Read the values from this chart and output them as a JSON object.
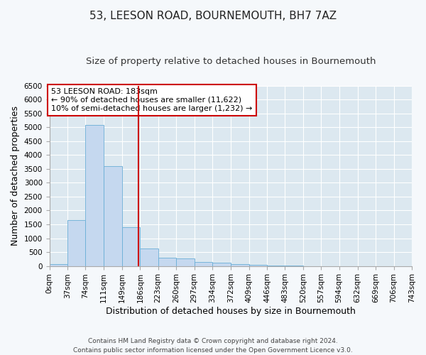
{
  "title": "53, LEESON ROAD, BOURNEMOUTH, BH7 7AZ",
  "subtitle": "Size of property relative to detached houses in Bournemouth",
  "xlabel": "Distribution of detached houses by size in Bournemouth",
  "ylabel": "Number of detached properties",
  "footnote1": "Contains HM Land Registry data © Crown copyright and database right 2024.",
  "footnote2": "Contains public sector information licensed under the Open Government Licence v3.0.",
  "annotation_line1": "53 LEESON ROAD: 183sqm",
  "annotation_line2": "← 90% of detached houses are smaller (11,622)",
  "annotation_line3": "10% of semi-detached houses are larger (1,232) →",
  "property_size": 183,
  "bar_edges": [
    0,
    37,
    74,
    111,
    149,
    186,
    223,
    260,
    297,
    334,
    372,
    409,
    446,
    483,
    520,
    557,
    594,
    632,
    669,
    706,
    743
  ],
  "bar_heights": [
    70,
    1650,
    5080,
    3600,
    1400,
    620,
    300,
    260,
    140,
    110,
    75,
    40,
    15,
    5,
    2,
    1,
    0,
    0,
    0,
    0
  ],
  "bar_color": "#c5d8ef",
  "bar_edge_color": "#6aaed6",
  "vline_color": "#cc0000",
  "vline_x": 183,
  "ylim": [
    0,
    6500
  ],
  "yticks": [
    0,
    500,
    1000,
    1500,
    2000,
    2500,
    3000,
    3500,
    4000,
    4500,
    5000,
    5500,
    6000,
    6500
  ],
  "tick_labels": [
    "0sqm",
    "37sqm",
    "74sqm",
    "111sqm",
    "149sqm",
    "186sqm",
    "223sqm",
    "260sqm",
    "297sqm",
    "334sqm",
    "372sqm",
    "409sqm",
    "446sqm",
    "483sqm",
    "520sqm",
    "557sqm",
    "594sqm",
    "632sqm",
    "669sqm",
    "706sqm",
    "743sqm"
  ],
  "background_color": "#dce8f0",
  "fig_background_color": "#f5f8fb",
  "grid_color": "#ffffff",
  "annotation_box_color": "#cc0000",
  "title_fontsize": 11,
  "subtitle_fontsize": 9.5,
  "axis_label_fontsize": 9,
  "tick_fontsize": 7.5,
  "annotation_fontsize": 8,
  "footnote_fontsize": 6.5
}
